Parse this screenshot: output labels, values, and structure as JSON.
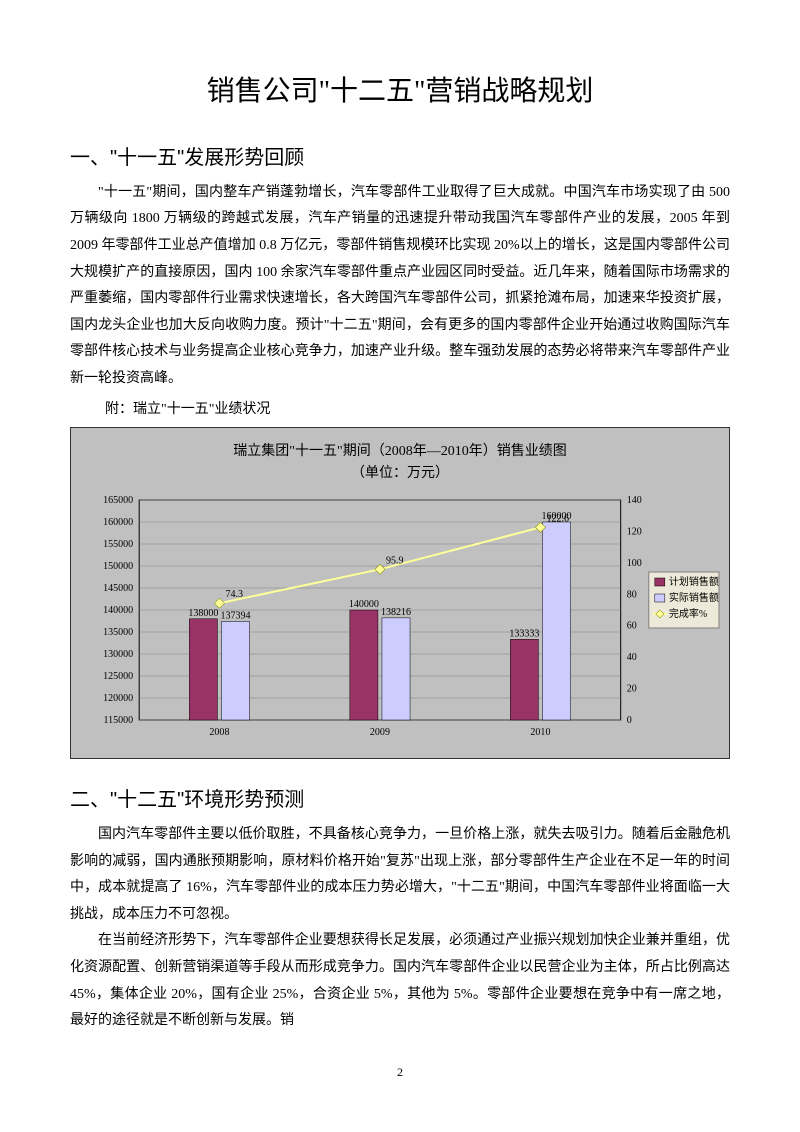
{
  "title": "销售公司\"十二五\"营销战略规划",
  "section1": {
    "heading": "一、\"十一五\"发展形势回顾",
    "paragraph": "\"十一五\"期间，国内整车产销蓬勃增长，汽车零部件工业取得了巨大成就。中国汽车市场实现了由 500 万辆级向 1800 万辆级的跨越式发展，汽车产销量的迅速提升带动我国汽车零部件产业的发展，2005 年到 2009 年零部件工业总产值增加 0.8 万亿元，零部件销售规模环比实现 20%以上的增长，这是国内零部件公司大规模扩产的直接原因，国内 100 余家汽车零部件重点产业园区同时受益。近几年来，随着国际市场需求的严重萎缩，国内零部件行业需求快速增长，各大跨国汽车零部件公司，抓紧抢滩布局，加速来华投资扩展，国内龙头企业也加大反向收购力度。预计\"十二五\"期间，会有更多的国内零部件企业开始通过收购国际汽车零部件核心技术与业务提高企业核心竞争力，加速产业升级。整车强劲发展的态势必将带来汽车零部件产业新一轮投资高峰。",
    "attachment_label": "附：瑞立\"十一五\"业绩状况"
  },
  "chart": {
    "title": "瑞立集团\"十一五\"期间（2008年—2010年）销售业绩图",
    "subtitle": "（单位：万元）",
    "type": "combo-bar-line",
    "categories": [
      "2008",
      "2009",
      "2010"
    ],
    "series": [
      {
        "name": "计划销售额",
        "type": "bar",
        "values": [
          138000,
          140000,
          133333
        ],
        "color": "#993366"
      },
      {
        "name": "实际销售额",
        "type": "bar",
        "values": [
          137394,
          138216,
          160000
        ],
        "color": "#ccccff"
      },
      {
        "name": "完成率%",
        "type": "line",
        "values": [
          74.3,
          95.9,
          122.6
        ],
        "color": "#ffff99",
        "marker": "diamond"
      }
    ],
    "y_left": {
      "min": 115000,
      "max": 165000,
      "step": 5000
    },
    "y_right": {
      "min": 0,
      "max": 140,
      "step": 20
    },
    "background_color": "#c0c0c0",
    "plot_bg_color": "#c0c0c0",
    "grid_color": "#808080",
    "grid_axis": "horizontal",
    "legend_bg": "#ece9d8",
    "bar_width": 0.35,
    "title_fontsize": 14,
    "axis_fontsize": 10,
    "legend_fontsize": 10
  },
  "section2": {
    "heading": "二、\"十二五\"环境形势预测",
    "paragraph1": "国内汽车零部件主要以低价取胜，不具备核心竞争力，一旦价格上涨，就失去吸引力。随着后金融危机影响的减弱，国内通胀预期影响，原材料价格开始\"复苏\"出现上涨，部分零部件生产企业在不足一年的时间中，成本就提高了 16%，汽车零部件业的成本压力势必增大，\"十二五\"期间，中国汽车零部件业将面临一大挑战，成本压力不可忽视。",
    "paragraph2": "在当前经济形势下，汽车零部件企业要想获得长足发展，必须通过产业振兴规划加快企业兼并重组，优化资源配置、创新营销渠道等手段从而形成竞争力。国内汽车零部件企业以民营企业为主体，所占比例高达 45%，集体企业 20%，国有企业 25%，合资企业 5%，其他为 5%。零部件企业要想在竞争中有一席之地，最好的途径就是不断创新与发展。销"
  },
  "page_number": "2"
}
